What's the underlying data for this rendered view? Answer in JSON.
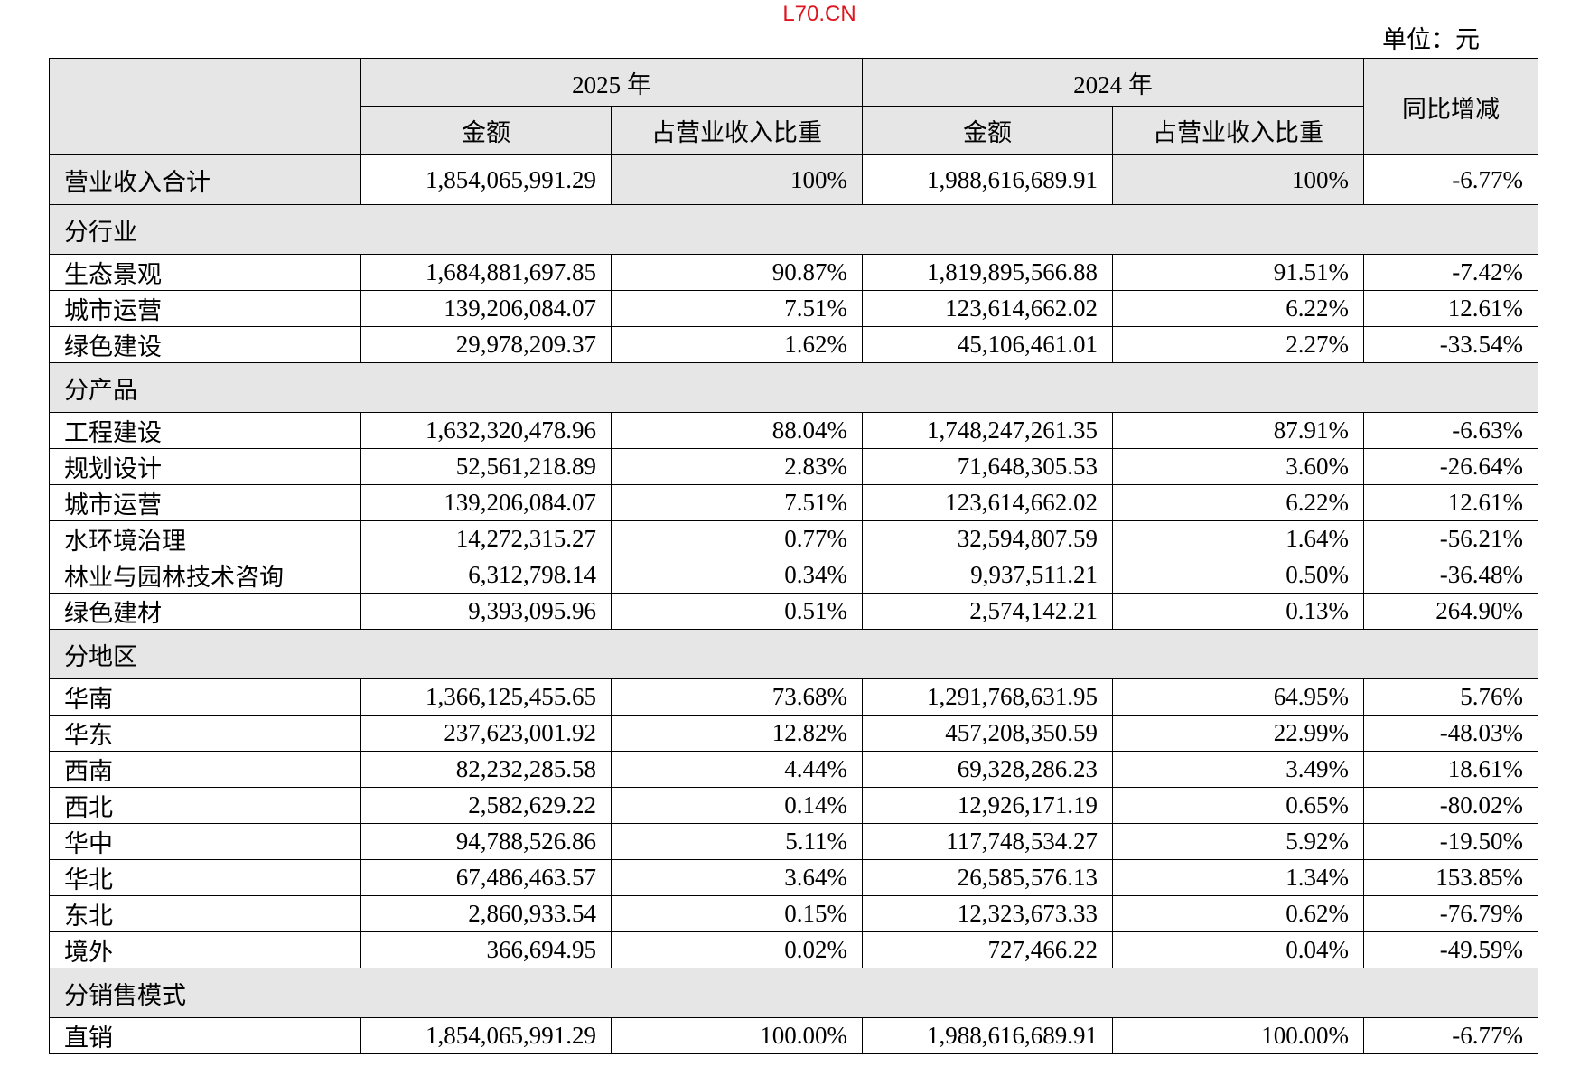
{
  "watermark": "L70.CN",
  "unit": "单位：元",
  "header": {
    "year_2025": "2025 年",
    "year_2024": "2024 年",
    "amount": "金额",
    "ratio": "占营业收入比重",
    "yoy": "同比增减"
  },
  "total": {
    "label": "营业收入合计",
    "amt_2025": "1,854,065,991.29",
    "ratio_2025": "100%",
    "amt_2024": "1,988,616,689.91",
    "ratio_2024": "100%",
    "yoy": "-6.77%"
  },
  "sections": [
    {
      "title": "分行业",
      "rows": [
        {
          "label": "生态景观",
          "amt_2025": "1,684,881,697.85",
          "ratio_2025": "90.87%",
          "amt_2024": "1,819,895,566.88",
          "ratio_2024": "91.51%",
          "yoy": "-7.42%"
        },
        {
          "label": "城市运营",
          "amt_2025": "139,206,084.07",
          "ratio_2025": "7.51%",
          "amt_2024": "123,614,662.02",
          "ratio_2024": "6.22%",
          "yoy": "12.61%"
        },
        {
          "label": "绿色建设",
          "amt_2025": "29,978,209.37",
          "ratio_2025": "1.62%",
          "amt_2024": "45,106,461.01",
          "ratio_2024": "2.27%",
          "yoy": "-33.54%"
        }
      ]
    },
    {
      "title": "分产品",
      "rows": [
        {
          "label": "工程建设",
          "amt_2025": "1,632,320,478.96",
          "ratio_2025": "88.04%",
          "amt_2024": "1,748,247,261.35",
          "ratio_2024": "87.91%",
          "yoy": "-6.63%"
        },
        {
          "label": "规划设计",
          "amt_2025": "52,561,218.89",
          "ratio_2025": "2.83%",
          "amt_2024": "71,648,305.53",
          "ratio_2024": "3.60%",
          "yoy": "-26.64%"
        },
        {
          "label": "城市运营",
          "amt_2025": "139,206,084.07",
          "ratio_2025": "7.51%",
          "amt_2024": "123,614,662.02",
          "ratio_2024": "6.22%",
          "yoy": "12.61%"
        },
        {
          "label": "水环境治理",
          "amt_2025": "14,272,315.27",
          "ratio_2025": "0.77%",
          "amt_2024": "32,594,807.59",
          "ratio_2024": "1.64%",
          "yoy": "-56.21%"
        },
        {
          "label": "林业与园林技术咨询",
          "amt_2025": "6,312,798.14",
          "ratio_2025": "0.34%",
          "amt_2024": "9,937,511.21",
          "ratio_2024": "0.50%",
          "yoy": "-36.48%"
        },
        {
          "label": "绿色建材",
          "amt_2025": "9,393,095.96",
          "ratio_2025": "0.51%",
          "amt_2024": "2,574,142.21",
          "ratio_2024": "0.13%",
          "yoy": "264.90%"
        }
      ]
    },
    {
      "title": "分地区",
      "rows": [
        {
          "label": "华南",
          "amt_2025": "1,366,125,455.65",
          "ratio_2025": "73.68%",
          "amt_2024": "1,291,768,631.95",
          "ratio_2024": "64.95%",
          "yoy": "5.76%"
        },
        {
          "label": "华东",
          "amt_2025": "237,623,001.92",
          "ratio_2025": "12.82%",
          "amt_2024": "457,208,350.59",
          "ratio_2024": "22.99%",
          "yoy": "-48.03%"
        },
        {
          "label": "西南",
          "amt_2025": "82,232,285.58",
          "ratio_2025": "4.44%",
          "amt_2024": "69,328,286.23",
          "ratio_2024": "3.49%",
          "yoy": "18.61%"
        },
        {
          "label": "西北",
          "amt_2025": "2,582,629.22",
          "ratio_2025": "0.14%",
          "amt_2024": "12,926,171.19",
          "ratio_2024": "0.65%",
          "yoy": "-80.02%"
        },
        {
          "label": "华中",
          "amt_2025": "94,788,526.86",
          "ratio_2025": "5.11%",
          "amt_2024": "117,748,534.27",
          "ratio_2024": "5.92%",
          "yoy": "-19.50%"
        },
        {
          "label": "华北",
          "amt_2025": "67,486,463.57",
          "ratio_2025": "3.64%",
          "amt_2024": "26,585,576.13",
          "ratio_2024": "1.34%",
          "yoy": "153.85%"
        },
        {
          "label": "东北",
          "amt_2025": "2,860,933.54",
          "ratio_2025": "0.15%",
          "amt_2024": "12,323,673.33",
          "ratio_2024": "0.62%",
          "yoy": "-76.79%"
        },
        {
          "label": "境外",
          "amt_2025": "366,694.95",
          "ratio_2025": "0.02%",
          "amt_2024": "727,466.22",
          "ratio_2024": "0.04%",
          "yoy": "-49.59%"
        }
      ]
    },
    {
      "title": "分销售模式",
      "rows": [
        {
          "label": "直销",
          "amt_2025": "1,854,065,991.29",
          "ratio_2025": "100.00%",
          "amt_2024": "1,988,616,689.91",
          "ratio_2024": "100.00%",
          "yoy": "-6.77%"
        }
      ]
    }
  ]
}
